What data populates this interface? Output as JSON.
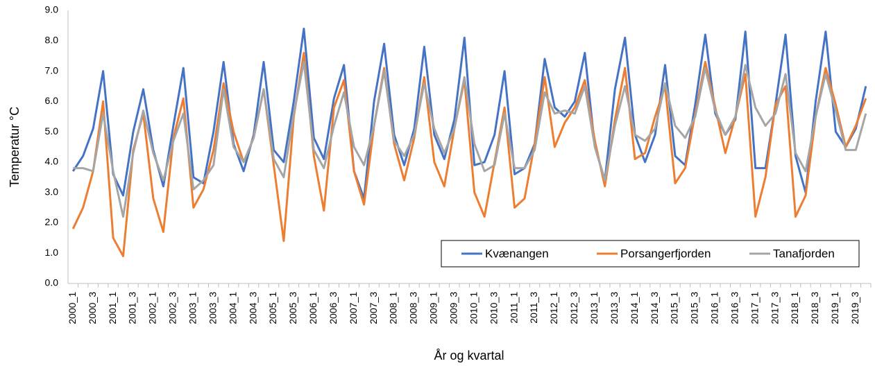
{
  "chart_data": {
    "type": "line",
    "xlabel": "År og kvartal",
    "ylabel": "Temperatur °C",
    "categories": [
      "2000_1",
      null,
      "2000_3",
      null,
      "2001_1",
      null,
      "2001_3",
      null,
      "2002_1",
      null,
      "2002_3",
      null,
      "2003_1",
      null,
      "2003_3",
      null,
      "2004_1",
      null,
      "2004_3",
      null,
      "2005_1",
      null,
      "2005_3",
      null,
      "2006_1",
      null,
      "2006_3",
      null,
      "2007_1",
      null,
      "2007_3",
      null,
      "2008_1",
      null,
      "2008_3",
      null,
      "2009_1",
      null,
      "2009_3",
      null,
      "2010_1",
      null,
      "2010_3",
      null,
      "2011_1",
      null,
      "2011_3",
      null,
      "2012_1",
      null,
      "2012_3",
      null,
      "2013_1",
      null,
      "2013_3",
      null,
      "2014_1",
      null,
      "2014_3",
      null,
      "2015_1",
      null,
      "2015_3",
      null,
      "2016_1",
      null,
      "2016_3",
      null,
      "2017_1",
      null,
      "2017_3",
      null,
      "2018_1",
      null,
      "2018_3",
      null,
      "2019_1",
      null,
      "2019_3",
      null
    ],
    "series": [
      {
        "name": "Kvænangen",
        "color": "#4472c4",
        "values": [
          3.7,
          4.2,
          5.1,
          7.0,
          3.6,
          2.9,
          5.0,
          6.4,
          4.4,
          3.2,
          5.2,
          7.1,
          3.5,
          3.3,
          5.0,
          7.3,
          4.6,
          3.7,
          4.9,
          7.3,
          4.4,
          4.0,
          6.0,
          8.4,
          4.8,
          4.1,
          6.1,
          7.2,
          3.7,
          2.8,
          6.0,
          7.9,
          4.9,
          3.9,
          5.1,
          7.8,
          4.9,
          4.1,
          5.4,
          8.1,
          3.9,
          4.0,
          4.9,
          7.0,
          3.6,
          3.8,
          4.6,
          7.4,
          5.8,
          5.5,
          6.0,
          7.6,
          4.5,
          3.4,
          6.4,
          8.1,
          4.9,
          4.0,
          4.9,
          7.2,
          4.2,
          3.9,
          5.9,
          8.2,
          5.6,
          4.9,
          5.4,
          8.3,
          3.8,
          3.8,
          5.9,
          8.2,
          4.2,
          3.0,
          6.0,
          8.3,
          5.0,
          4.5,
          5.1,
          6.5
        ]
      },
      {
        "name": "Porsangerfjorden",
        "color": "#ed7d31",
        "values": [
          1.8,
          2.5,
          3.7,
          6.0,
          1.5,
          0.9,
          4.4,
          5.6,
          2.8,
          1.7,
          4.8,
          6.1,
          2.5,
          3.1,
          4.4,
          6.6,
          5.0,
          4.0,
          4.8,
          6.4,
          3.9,
          1.4,
          5.5,
          7.6,
          4.2,
          2.4,
          5.8,
          6.7,
          3.7,
          2.6,
          5.2,
          7.1,
          4.6,
          3.4,
          4.8,
          6.8,
          4.0,
          3.2,
          5.1,
          6.7,
          3.0,
          2.2,
          4.0,
          5.8,
          2.5,
          2.8,
          4.6,
          6.8,
          4.5,
          5.3,
          5.8,
          6.7,
          4.7,
          3.2,
          5.4,
          7.1,
          4.1,
          4.3,
          5.5,
          6.5,
          3.3,
          3.8,
          5.6,
          7.3,
          5.8,
          4.3,
          5.5,
          6.9,
          2.2,
          3.5,
          5.9,
          6.5,
          2.2,
          2.9,
          5.5,
          7.1,
          5.9,
          4.5,
          5.2,
          6.1
        ]
      },
      {
        "name": "Tanafjorden",
        "color": "#a5a5a5",
        "values": [
          3.8,
          3.8,
          3.7,
          5.6,
          3.7,
          2.2,
          4.3,
          5.7,
          4.3,
          3.4,
          4.7,
          5.6,
          3.1,
          3.4,
          3.9,
          6.4,
          4.5,
          4.0,
          4.8,
          6.4,
          4.1,
          3.5,
          5.6,
          7.3,
          4.4,
          3.8,
          5.2,
          6.3,
          4.5,
          3.9,
          5.2,
          7.0,
          4.7,
          4.2,
          4.9,
          6.6,
          5.1,
          4.3,
          5.1,
          6.8,
          4.6,
          3.7,
          3.9,
          5.6,
          3.8,
          3.8,
          4.4,
          6.3,
          5.6,
          5.7,
          5.6,
          6.5,
          4.5,
          3.4,
          5.2,
          6.5,
          4.9,
          4.7,
          5.1,
          6.6,
          5.2,
          4.8,
          5.5,
          7.1,
          5.7,
          4.9,
          5.5,
          7.2,
          5.8,
          5.2,
          5.6,
          6.9,
          4.3,
          3.7,
          5.5,
          6.9,
          5.7,
          4.4,
          4.4,
          5.6
        ]
      }
    ],
    "ylim": [
      0,
      9
    ],
    "yticks": [
      {
        "value": 0,
        "label": "0.0"
      },
      {
        "value": 1,
        "label": "1.0"
      },
      {
        "value": 2,
        "label": "2.0"
      },
      {
        "value": 3,
        "label": "3.0"
      },
      {
        "value": 4,
        "label": "4.0"
      },
      {
        "value": 5,
        "label": "5.0"
      },
      {
        "value": 6,
        "label": "6.0"
      },
      {
        "value": 7,
        "label": "7.0"
      },
      {
        "value": 8,
        "label": "8.0"
      },
      {
        "value": 9,
        "label": "9.0"
      }
    ],
    "grid": false,
    "legend": "lower right"
  }
}
